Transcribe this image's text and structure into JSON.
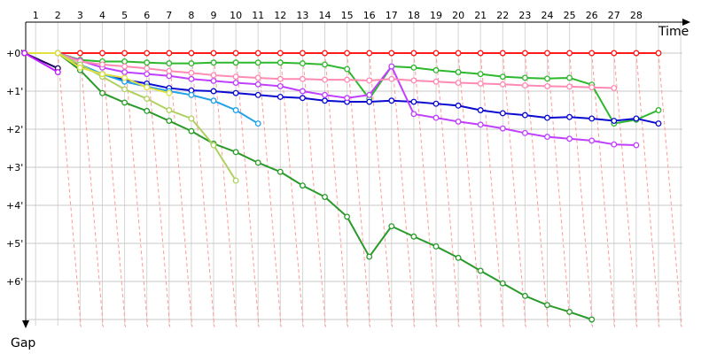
{
  "chart_data": {
    "type": "line",
    "title": "",
    "xlabel": "Time",
    "ylabel": "Gap",
    "x_ticks": [
      "1",
      "2",
      "3",
      "4",
      "5",
      "6",
      "7",
      "8",
      "9",
      "10",
      "11",
      "12",
      "13",
      "14",
      "15",
      "16",
      "17",
      "18",
      "19",
      "20",
      "21",
      "22",
      "23",
      "24",
      "25",
      "26",
      "27",
      "28"
    ],
    "y_ticks": [
      "+0'",
      "+1'",
      "+2'",
      "+3'",
      "+4'",
      "+5'",
      "+6'"
    ],
    "xlim": [
      0.5,
      30
    ],
    "ylim": [
      -0.7,
      7.6
    ],
    "grid": true,
    "series": [
      {
        "color": "#ff1a1a",
        "points": [
          [
            0.5,
            0
          ],
          [
            2,
            0
          ],
          [
            3,
            0
          ],
          [
            4,
            0
          ],
          [
            5,
            0
          ],
          [
            6,
            0
          ],
          [
            7,
            0
          ],
          [
            8,
            0
          ],
          [
            9,
            0
          ],
          [
            10,
            0
          ],
          [
            11,
            0
          ],
          [
            12,
            0
          ],
          [
            13,
            0
          ],
          [
            14,
            0
          ],
          [
            15,
            0
          ],
          [
            16,
            0
          ],
          [
            17,
            0
          ],
          [
            18,
            0
          ],
          [
            19,
            0
          ],
          [
            20,
            0
          ],
          [
            21,
            0
          ],
          [
            22,
            0
          ],
          [
            23,
            0
          ],
          [
            24,
            0
          ],
          [
            25,
            0
          ],
          [
            26,
            0
          ],
          [
            27,
            0
          ],
          [
            28,
            0
          ],
          [
            29,
            0
          ]
        ]
      },
      {
        "color": "#2db82d",
        "points": [
          [
            0.5,
            0
          ],
          [
            2,
            0
          ],
          [
            3,
            0.18
          ],
          [
            4,
            0.22
          ],
          [
            5,
            0.22
          ],
          [
            6,
            0.25
          ],
          [
            7,
            0.27
          ],
          [
            8,
            0.27
          ],
          [
            9,
            0.25
          ],
          [
            10,
            0.25
          ],
          [
            11,
            0.25
          ],
          [
            12,
            0.25
          ],
          [
            13,
            0.27
          ],
          [
            14,
            0.3
          ],
          [
            15,
            0.42
          ],
          [
            16,
            1.2
          ],
          [
            17,
            0.35
          ],
          [
            18,
            0.38
          ],
          [
            19,
            0.45
          ],
          [
            20,
            0.5
          ],
          [
            21,
            0.55
          ],
          [
            22,
            0.62
          ],
          [
            23,
            0.65
          ],
          [
            24,
            0.67
          ],
          [
            25,
            0.65
          ],
          [
            26,
            0.83
          ],
          [
            27,
            1.85
          ],
          [
            28,
            1.75
          ],
          [
            29,
            1.5
          ]
        ]
      },
      {
        "color": "#0a0ad0",
        "points": [
          [
            0.5,
            0
          ],
          [
            2,
            0
          ],
          [
            3,
            0.35
          ],
          [
            4,
            0.55
          ],
          [
            5,
            0.7
          ],
          [
            6,
            0.8
          ],
          [
            7,
            0.92
          ],
          [
            8,
            0.98
          ],
          [
            9,
            1
          ],
          [
            10,
            1.05
          ],
          [
            11,
            1.1
          ],
          [
            12,
            1.15
          ],
          [
            13,
            1.18
          ],
          [
            14,
            1.25
          ],
          [
            15,
            1.28
          ],
          [
            16,
            1.28
          ],
          [
            17,
            1.25
          ],
          [
            18,
            1.28
          ],
          [
            19,
            1.33
          ],
          [
            20,
            1.38
          ],
          [
            21,
            1.5
          ],
          [
            22,
            1.58
          ],
          [
            23,
            1.63
          ],
          [
            24,
            1.7
          ],
          [
            25,
            1.68
          ],
          [
            26,
            1.72
          ],
          [
            27,
            1.78
          ],
          [
            28,
            1.72
          ],
          [
            29,
            1.85
          ]
        ]
      },
      {
        "color": "#c040ff",
        "points": [
          [
            0.5,
            0
          ],
          [
            2,
            0
          ],
          [
            3,
            0.2
          ],
          [
            4,
            0.38
          ],
          [
            5,
            0.5
          ],
          [
            6,
            0.55
          ],
          [
            7,
            0.6
          ],
          [
            8,
            0.68
          ],
          [
            9,
            0.73
          ],
          [
            10,
            0.78
          ],
          [
            11,
            0.82
          ],
          [
            12,
            0.87
          ],
          [
            13,
            1.0
          ],
          [
            14,
            1.1
          ],
          [
            15,
            1.18
          ],
          [
            16,
            1.1
          ],
          [
            17,
            0.35
          ],
          [
            18,
            1.6
          ],
          [
            19,
            1.7
          ],
          [
            20,
            1.8
          ],
          [
            21,
            1.88
          ],
          [
            22,
            1.98
          ],
          [
            23,
            2.1
          ],
          [
            24,
            2.2
          ],
          [
            25,
            2.25
          ],
          [
            26,
            2.3
          ],
          [
            27,
            2.4
          ],
          [
            28,
            2.42
          ]
        ]
      },
      {
        "color": "#ff8ab4",
        "points": [
          [
            0.5,
            0
          ],
          [
            2,
            0
          ],
          [
            3,
            0.22
          ],
          [
            4,
            0.3
          ],
          [
            5,
            0.35
          ],
          [
            6,
            0.4
          ],
          [
            7,
            0.47
          ],
          [
            8,
            0.52
          ],
          [
            9,
            0.58
          ],
          [
            10,
            0.62
          ],
          [
            11,
            0.65
          ],
          [
            12,
            0.68
          ],
          [
            13,
            0.68
          ],
          [
            14,
            0.7
          ],
          [
            15,
            0.7
          ],
          [
            16,
            0.72
          ],
          [
            17,
            0.68
          ],
          [
            18,
            0.72
          ],
          [
            19,
            0.75
          ],
          [
            20,
            0.78
          ],
          [
            21,
            0.8
          ],
          [
            22,
            0.82
          ],
          [
            23,
            0.85
          ],
          [
            24,
            0.87
          ],
          [
            25,
            0.88
          ],
          [
            26,
            0.9
          ],
          [
            27,
            0.92
          ]
        ]
      },
      {
        "color": "#2a9a2a",
        "points": [
          [
            0.5,
            0
          ],
          [
            2,
            0
          ],
          [
            3,
            0.45
          ],
          [
            4,
            1.05
          ],
          [
            5,
            1.3
          ],
          [
            6,
            1.52
          ],
          [
            7,
            1.78
          ],
          [
            8,
            2.05
          ],
          [
            9,
            2.38
          ],
          [
            10,
            2.6
          ],
          [
            11,
            2.88
          ],
          [
            12,
            3.12
          ],
          [
            13,
            3.48
          ],
          [
            14,
            3.78
          ],
          [
            15,
            4.3
          ],
          [
            16,
            5.35
          ],
          [
            17,
            4.55
          ],
          [
            18,
            4.82
          ],
          [
            19,
            5.08
          ],
          [
            20,
            5.38
          ],
          [
            21,
            5.72
          ],
          [
            22,
            6.05
          ],
          [
            23,
            6.38
          ],
          [
            24,
            6.62
          ],
          [
            25,
            6.8
          ],
          [
            26,
            7.0
          ]
        ]
      },
      {
        "color": "#22a0e8",
        "points": [
          [
            0.5,
            0
          ],
          [
            2,
            0
          ],
          [
            3,
            0.3
          ],
          [
            4,
            0.55
          ],
          [
            5,
            0.75
          ],
          [
            6,
            0.88
          ],
          [
            7,
            1.0
          ],
          [
            8,
            1.1
          ],
          [
            9,
            1.25
          ],
          [
            10,
            1.5
          ],
          [
            11,
            1.85
          ]
        ]
      },
      {
        "color": "#b0d060",
        "points": [
          [
            0.5,
            0
          ],
          [
            2,
            0
          ],
          [
            3,
            0.3
          ],
          [
            4,
            0.62
          ],
          [
            5,
            0.95
          ],
          [
            6,
            1.2
          ],
          [
            7,
            1.5
          ],
          [
            8,
            1.72
          ],
          [
            9,
            2.42
          ],
          [
            10,
            3.35
          ]
        ]
      },
      {
        "color": "#e0e040",
        "points": [
          [
            0.5,
            0
          ],
          [
            2,
            0
          ],
          [
            3,
            0.38
          ],
          [
            4,
            0.55
          ],
          [
            5,
            0.65
          ],
          [
            6,
            0.9
          ],
          [
            7,
            1.05
          ]
        ]
      },
      {
        "color": "#200060",
        "points": [
          [
            0.5,
            0
          ],
          [
            2,
            0.4
          ]
        ]
      },
      {
        "color": "#c020ff",
        "points": [
          [
            0.5,
            0
          ],
          [
            2,
            0.5
          ]
        ]
      }
    ]
  }
}
